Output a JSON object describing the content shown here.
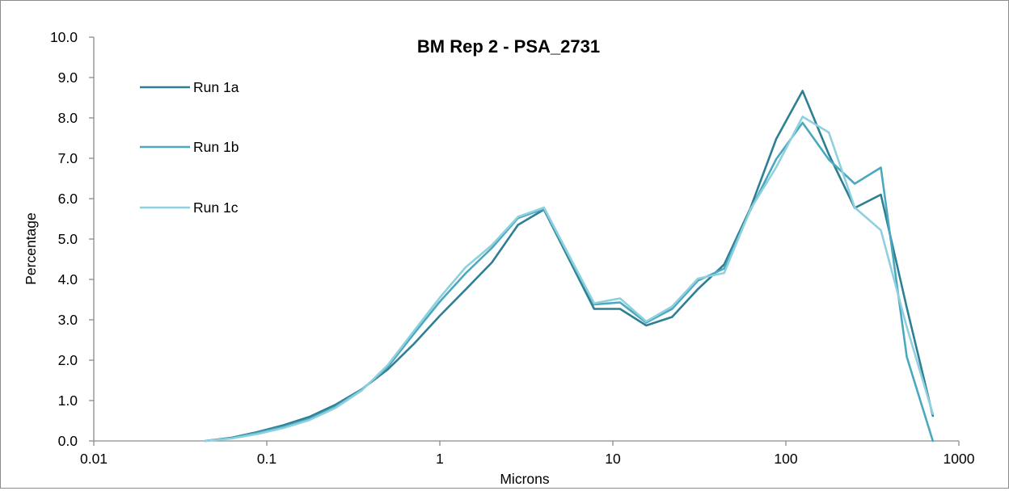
{
  "chart_data": {
    "type": "line",
    "title": "BM Rep 2 - PSA_2731",
    "xlabel": "Microns",
    "ylabel": "Percentage",
    "x_scale": "log",
    "xlim": [
      0.01,
      1000
    ],
    "ylim": [
      0,
      10
    ],
    "x_ticks": [
      "0.01",
      "0.1",
      "1",
      "10",
      "100",
      "1000"
    ],
    "y_ticks": [
      "0.0",
      "1.0",
      "2.0",
      "3.0",
      "4.0",
      "5.0",
      "6.0",
      "7.0",
      "8.0",
      "9.0",
      "10.0"
    ],
    "grid": false,
    "legend_position": "top-left",
    "x": [
      0.044,
      0.0625,
      0.088,
      0.125,
      0.177,
      0.25,
      0.354,
      0.5,
      0.707,
      1,
      1.41,
      2,
      2.83,
      4,
      7.8,
      11,
      15.6,
      22,
      31,
      44,
      62.5,
      88,
      125,
      177,
      250,
      354,
      500,
      707
    ],
    "series": [
      {
        "name": "Run 1a",
        "color": "#2e7f93",
        "values": [
          0.0,
          0.08,
          0.22,
          0.39,
          0.6,
          0.9,
          1.28,
          1.77,
          2.4,
          3.1,
          3.75,
          4.42,
          5.35,
          5.73,
          3.27,
          3.27,
          2.86,
          3.07,
          3.76,
          4.37,
          5.77,
          7.48,
          8.67,
          7.1,
          5.77,
          6.1,
          3.3,
          0.62
        ]
      },
      {
        "name": "Run 1b",
        "color": "#4aa8bf",
        "values": [
          0.0,
          0.07,
          0.2,
          0.35,
          0.55,
          0.85,
          1.27,
          1.83,
          2.65,
          3.45,
          4.15,
          4.78,
          5.52,
          5.75,
          3.38,
          3.43,
          2.93,
          3.27,
          3.97,
          4.27,
          5.72,
          6.98,
          7.88,
          6.97,
          6.37,
          6.77,
          2.08,
          0.0
        ]
      },
      {
        "name": "Run 1c",
        "color": "#8fd0df",
        "values": [
          0.0,
          0.06,
          0.17,
          0.32,
          0.52,
          0.82,
          1.25,
          1.88,
          2.72,
          3.55,
          4.3,
          4.85,
          5.55,
          5.78,
          3.41,
          3.53,
          2.96,
          3.33,
          4.02,
          4.16,
          5.74,
          6.78,
          8.03,
          7.64,
          5.78,
          5.22,
          2.82,
          0.67
        ]
      }
    ]
  }
}
